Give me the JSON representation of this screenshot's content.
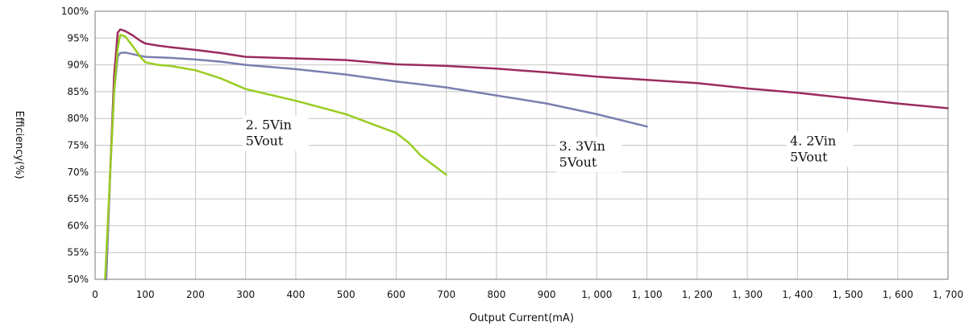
{
  "chart_data": {
    "type": "line",
    "xlabel": "Output Current(mA)",
    "ylabel": "Efficiency(%)",
    "xlim": [
      0,
      1700
    ],
    "ylim": [
      50,
      100
    ],
    "grid": true,
    "x_ticks": [
      0,
      100,
      200,
      300,
      400,
      500,
      600,
      700,
      800,
      900,
      1000,
      1100,
      1200,
      1300,
      1400,
      1500,
      1600,
      1700
    ],
    "x_tick_labels": [
      "0",
      "100",
      "200",
      "300",
      "400",
      "500",
      "600",
      "700",
      "800",
      "900",
      "1, 000",
      "1, 100",
      "1, 200",
      "1, 300",
      "1, 400",
      "1, 500",
      "1, 600",
      "1, 700"
    ],
    "y_ticks": [
      50,
      55,
      60,
      65,
      70,
      75,
      80,
      85,
      90,
      95,
      100
    ],
    "y_tick_labels": [
      "50%",
      "55%",
      "60%",
      "65%",
      "70%",
      "75%",
      "80%",
      "85%",
      "90%",
      "95%",
      "100%"
    ],
    "series": [
      {
        "color": "#9b2c5e",
        "points": [
          [
            22,
            50
          ],
          [
            30,
            70
          ],
          [
            38,
            88
          ],
          [
            45,
            96
          ],
          [
            50,
            96.6
          ],
          [
            60,
            96.3
          ],
          [
            75,
            95.5
          ],
          [
            90,
            94.5
          ],
          [
            100,
            94
          ],
          [
            125,
            93.6
          ],
          [
            150,
            93.3
          ],
          [
            200,
            92.8
          ],
          [
            250,
            92.2
          ],
          [
            300,
            91.5
          ],
          [
            400,
            91.2
          ],
          [
            500,
            90.9
          ],
          [
            600,
            90.1
          ],
          [
            700,
            89.8
          ],
          [
            800,
            89.3
          ],
          [
            900,
            88.6
          ],
          [
            1000,
            87.8
          ],
          [
            1100,
            87.2
          ],
          [
            1200,
            86.6
          ],
          [
            1300,
            85.6
          ],
          [
            1400,
            84.8
          ],
          [
            1500,
            83.8
          ],
          [
            1600,
            82.8
          ],
          [
            1700,
            81.9
          ]
        ]
      },
      {
        "color": "#7b7fb0",
        "points": [
          [
            22,
            50
          ],
          [
            30,
            70
          ],
          [
            38,
            85
          ],
          [
            45,
            91.5
          ],
          [
            50,
            92.2
          ],
          [
            60,
            92.3
          ],
          [
            75,
            92
          ],
          [
            100,
            91.5
          ],
          [
            150,
            91.3
          ],
          [
            200,
            91
          ],
          [
            250,
            90.6
          ],
          [
            300,
            90
          ],
          [
            400,
            89.2
          ],
          [
            500,
            88.2
          ],
          [
            600,
            86.9
          ],
          [
            700,
            85.8
          ],
          [
            800,
            84.3
          ],
          [
            900,
            82.8
          ],
          [
            1000,
            80.8
          ],
          [
            1100,
            78.5
          ]
        ]
      },
      {
        "color": "#99cc22",
        "points": [
          [
            20,
            50
          ],
          [
            30,
            70
          ],
          [
            38,
            85
          ],
          [
            45,
            93
          ],
          [
            50,
            95.6
          ],
          [
            60,
            95.3
          ],
          [
            75,
            93.5
          ],
          [
            90,
            91.5
          ],
          [
            100,
            90.5
          ],
          [
            125,
            90
          ],
          [
            150,
            89.8
          ],
          [
            200,
            89
          ],
          [
            250,
            87.5
          ],
          [
            300,
            85.5
          ],
          [
            400,
            83.3
          ],
          [
            500,
            80.8
          ],
          [
            600,
            77.3
          ],
          [
            625,
            75.5
          ],
          [
            650,
            73
          ],
          [
            700,
            69.5
          ]
        ]
      }
    ],
    "annotations": [
      {
        "lines": [
          "2. 5Vin",
          "5Vout"
        ],
        "x": 300,
        "y": 78
      },
      {
        "lines": [
          "3. 3Vin",
          "5Vout"
        ],
        "x": 925,
        "y": 74
      },
      {
        "lines": [
          "4. 2Vin",
          "5Vout"
        ],
        "x": 1385,
        "y": 75
      }
    ]
  }
}
